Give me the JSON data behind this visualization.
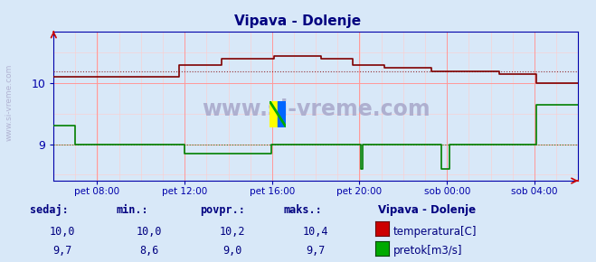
{
  "title": "Vipava - Dolenje",
  "title_color": "#000080",
  "bg_color": "#d8e8f8",
  "plot_bg_color": "#d8e8f8",
  "x_labels": [
    "pet 08:00",
    "pet 12:00",
    "pet 16:00",
    "pet 20:00",
    "sob 00:00",
    "sob 04:00"
  ],
  "x_ticks_norm": [
    0.083,
    0.25,
    0.417,
    0.583,
    0.75,
    0.917
  ],
  "temp_color": "#800000",
  "flow_color": "#008000",
  "grid_color_major": "#ff9999",
  "grid_color_minor": "#ffcccc",
  "watermark": "www.si-vreme.com",
  "watermark_color": "#aaaacc",
  "temp_data_x": [
    0.0,
    0.07,
    0.24,
    0.32,
    0.42,
    0.51,
    0.57,
    0.63,
    0.72,
    0.85,
    0.92,
    1.0
  ],
  "temp_data_y": [
    10.1,
    10.1,
    10.3,
    10.4,
    10.45,
    10.4,
    10.3,
    10.25,
    10.2,
    10.15,
    10.0,
    10.0
  ],
  "flow_data_x": [
    0.0,
    0.04,
    0.08,
    0.25,
    0.415,
    0.585,
    0.59,
    0.74,
    0.755,
    0.92,
    1.0
  ],
  "flow_data_y": [
    9.3,
    9.0,
    9.0,
    8.85,
    9.0,
    8.6,
    9.0,
    8.6,
    9.0,
    9.65,
    9.65
  ],
  "temp_avg": 10.2,
  "flow_avg": 9.0,
  "y_min": 8.4,
  "y_max": 10.85,
  "axis_color": "#0000aa",
  "tick_color": "#0000aa",
  "legend_name": "Vipava - Dolenje",
  "sedaj_temp": "10,0",
  "min_temp": "10,0",
  "povpr_temp": "10,2",
  "maks_temp": "10,4",
  "sedaj_flow": "9,7",
  "min_flow": "8,6",
  "povpr_flow": "9,0",
  "maks_flow": "9,7",
  "footer_color": "#000080",
  "temp_legend_color": "#cc0000",
  "flow_legend_color": "#00aa00"
}
